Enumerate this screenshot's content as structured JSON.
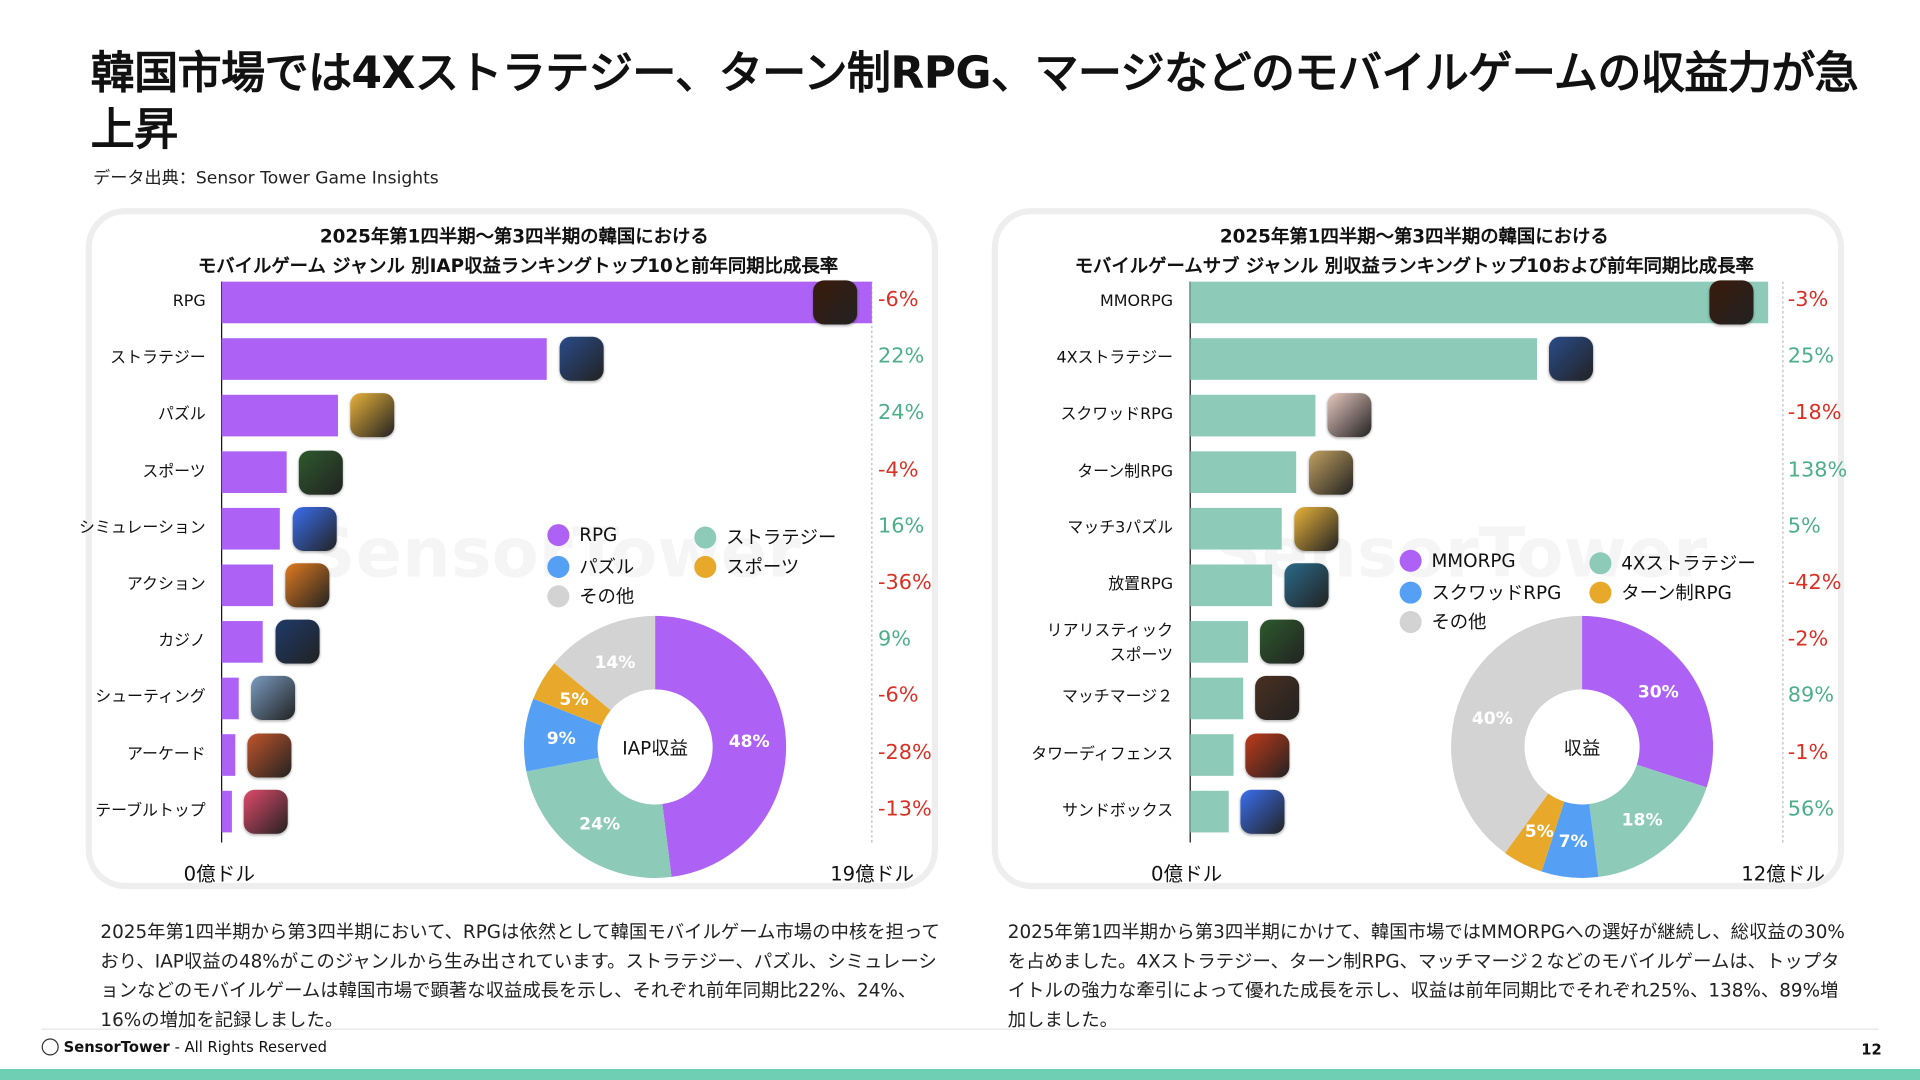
{
  "title": "韓国市場では4Xストラテジー、ターン制RPG、マージなどのモバイルゲームの収益力が急上昇",
  "source": "データ出典：Sensor Tower Game Insights",
  "watermark": "SensorTower",
  "colors": {
    "positive": "#4caf8a",
    "negative": "#d93025",
    "purple": "#ad62f5",
    "teal": "#8ecab8",
    "blue": "#55a0f5",
    "orange": "#e8a92a",
    "gray": "#d3d3d3"
  },
  "chart_data": [
    {
      "type": "bar",
      "orientation": "horizontal",
      "title_lines": [
        "2025年第1四半期〜第3四半期の韓国における",
        "モバイルゲーム ジャンル 別IAP収益ランキングトップ10と前年同期比成長率"
      ],
      "categories": [
        "RPG",
        "ストラテジー",
        "パズル",
        "スポーツ",
        "シミュレーション",
        "アクション",
        "カジノ",
        "シューティング",
        "アーケード",
        "テーブルトップ"
      ],
      "values": [
        19.0,
        9.5,
        3.4,
        1.9,
        1.7,
        1.5,
        1.2,
        0.5,
        0.4,
        0.3
      ],
      "growth": [
        "-6%",
        "22%",
        "24%",
        "-4%",
        "16%",
        "-36%",
        "9%",
        "-6%",
        "-28%",
        "-13%"
      ],
      "xlim": [
        0,
        19
      ],
      "xmin_label": "0億ドル",
      "xmax_label": "19億ドル",
      "bar_color": "#ad62f5",
      "icons": [
        "lineage-m-icon",
        "strategy-globe-icon",
        "royal-match-icon",
        "ea-fc-icon",
        "roblox-icon",
        "action-hero-icon",
        "hangame-poker-icon",
        "pubg-icon",
        "cookie-run-icon",
        "tabletop-game-icon"
      ],
      "icon_colors": [
        "#3a1a0c",
        "#2a4c8a",
        "#e8b23a",
        "#2d5a2d",
        "#3b6ff0",
        "#e07a1f",
        "#1e3a6a",
        "#7a9cc0",
        "#c0552a",
        "#e04a6a"
      ]
    },
    {
      "type": "pie",
      "donut": true,
      "center_label": "IAP収益",
      "legend": [
        "RPG",
        "ストラテジー",
        "パズル",
        "スポーツ",
        "その他"
      ],
      "slices": [
        {
          "name": "RPG",
          "value": 48,
          "label": "48%",
          "color": "#ad62f5"
        },
        {
          "name": "ストラテジー",
          "value": 24,
          "label": "24%",
          "color": "#8ecab8"
        },
        {
          "name": "パズル",
          "value": 9,
          "label": "9%",
          "color": "#55a0f5"
        },
        {
          "name": "スポーツ",
          "value": 5,
          "label": "5%",
          "color": "#e8a92a"
        },
        {
          "name": "その他",
          "value": 14,
          "label": "14%",
          "color": "#d3d3d3"
        }
      ]
    },
    {
      "type": "bar",
      "orientation": "horizontal",
      "title_lines": [
        "2025年第1四半期〜第3四半期の韓国における",
        "モバイルゲームサブ ジャンル 別収益ランキングトップ10および前年同期比成長率"
      ],
      "categories": [
        "MMORPG",
        "4Xストラテジー",
        "スクワッドRPG",
        "ターン制RPG",
        "マッチ3パズル",
        "放置RPG",
        "リアリスティック\nスポーツ",
        "マッチマージ２",
        "タワーディフェンス",
        "サンドボックス"
      ],
      "values": [
        12.0,
        7.2,
        2.6,
        2.2,
        1.9,
        1.7,
        1.2,
        1.1,
        0.9,
        0.8
      ],
      "growth": [
        "-3%",
        "25%",
        "-18%",
        "138%",
        "5%",
        "-42%",
        "-2%",
        "89%",
        "-1%",
        "56%"
      ],
      "xlim": [
        0,
        12
      ],
      "xmin_label": "0億ドル",
      "xmax_label": "12億ドル",
      "bar_color": "#8ecab8",
      "icons": [
        "lineage-m-icon",
        "strategy-globe-icon",
        "squad-girl-icon",
        "netmarble-hero-icon",
        "royal-match-icon",
        "idle-mage-icon",
        "ea-fc-icon",
        "merge-girl-icon",
        "tower-defense-icon",
        "roblox-icon"
      ],
      "icon_colors": [
        "#3a1a0c",
        "#2a4c8a",
        "#e8c8c0",
        "#c0a060",
        "#e8b23a",
        "#2a6a8a",
        "#2d5a2d",
        "#4a3020",
        "#c03a1a",
        "#3b6ff0"
      ]
    },
    {
      "type": "pie",
      "donut": true,
      "center_label": "収益",
      "legend": [
        "MMORPG",
        "4Xストラテジー",
        "スクワッドRPG",
        "ターン制RPG",
        "その他"
      ],
      "slices": [
        {
          "name": "MMORPG",
          "value": 30,
          "label": "30%",
          "color": "#ad62f5"
        },
        {
          "name": "4Xストラテジー",
          "value": 18,
          "label": "18%",
          "color": "#8ecab8"
        },
        {
          "name": "スクワッドRPG",
          "value": 7,
          "label": "7%",
          "color": "#55a0f5"
        },
        {
          "name": "ターン制RPG",
          "value": 5,
          "label": "5%",
          "color": "#e8a92a"
        },
        {
          "name": "その他",
          "value": 40,
          "label": "40%",
          "color": "#d3d3d3"
        }
      ]
    }
  ],
  "paragraphs": [
    "2025年第1四半期から第3四半期において、RPGは依然として韓国モバイルゲーム市場の中核を担っており、IAP収益の48%がこのジャンルから生み出されています。ストラテジー、パズル、シミュレーションなどのモバイルゲームは韓国市場で顕著な収益成長を示し、それぞれ前年同期比22%、24%、16%の増加を記録しました。",
    "2025年第1四半期から第3四半期にかけて、韓国市場ではMMORPGへの選好が継続し、総収益の30%を占めました。4Xストラテジー、ターン制RPG、マッチマージ２などのモバイルゲームは、トップタイトルの強力な牽引によって優れた成長を示し、収益は前年同期比でそれぞれ25%、138%、89%増加しました。"
  ],
  "footer": {
    "brand": "SensorTower",
    "rights": " - All Rights Reserved",
    "page": "12"
  }
}
